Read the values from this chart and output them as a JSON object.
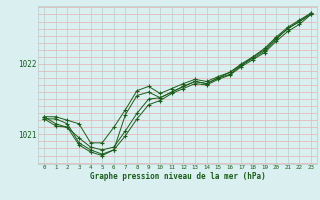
{
  "bg_color": "#daf0f0",
  "plot_bg": "#daf0f0",
  "grid_color_h": "#c0d8d8",
  "grid_color_v": "#b8cccc",
  "line_color": "#1a5c1a",
  "xlabel": "Graphe pression niveau de la mer (hPa)",
  "xlabel_color": "#1a5c1a",
  "ylabel_color": "#1a5c1a",
  "tick_color": "#1a5c1a",
  "xlim": [
    -0.5,
    23.5
  ],
  "ylim": [
    1020.58,
    1022.82
  ],
  "yticks": [
    1021,
    1022
  ],
  "xticks": [
    0,
    1,
    2,
    3,
    4,
    5,
    6,
    7,
    8,
    9,
    10,
    11,
    12,
    13,
    14,
    15,
    16,
    17,
    18,
    19,
    20,
    21,
    22,
    23
  ],
  "series": [
    [
      1021.25,
      1021.25,
      1021.2,
      1021.15,
      1020.88,
      1020.88,
      1021.1,
      1021.35,
      1021.62,
      1021.68,
      1021.58,
      1021.65,
      1021.72,
      1021.78,
      1021.75,
      1021.82,
      1021.88,
      1022.0,
      1022.1,
      1022.22,
      1022.38,
      1022.52,
      1022.62,
      1022.72
    ],
    [
      1021.25,
      1021.15,
      1021.1,
      1020.95,
      1020.82,
      1020.78,
      1020.82,
      1021.05,
      1021.3,
      1021.5,
      1021.52,
      1021.6,
      1021.68,
      1021.75,
      1021.72,
      1021.8,
      1021.85,
      1021.98,
      1022.08,
      1022.18,
      1022.35,
      1022.5,
      1022.6,
      1022.7
    ],
    [
      1021.22,
      1021.22,
      1021.15,
      1020.88,
      1020.78,
      1020.72,
      1020.78,
      1021.28,
      1021.55,
      1021.6,
      1021.52,
      1021.6,
      1021.68,
      1021.75,
      1021.72,
      1021.8,
      1021.88,
      1021.98,
      1022.1,
      1022.2,
      1022.36,
      1022.5,
      1022.6,
      1022.72
    ],
    [
      1021.22,
      1021.12,
      1021.1,
      1020.85,
      1020.75,
      1020.7,
      1020.78,
      1020.98,
      1021.22,
      1021.42,
      1021.48,
      1021.58,
      1021.65,
      1021.72,
      1021.7,
      1021.78,
      1021.84,
      1021.96,
      1022.06,
      1022.16,
      1022.32,
      1022.46,
      1022.56,
      1022.7
    ]
  ]
}
